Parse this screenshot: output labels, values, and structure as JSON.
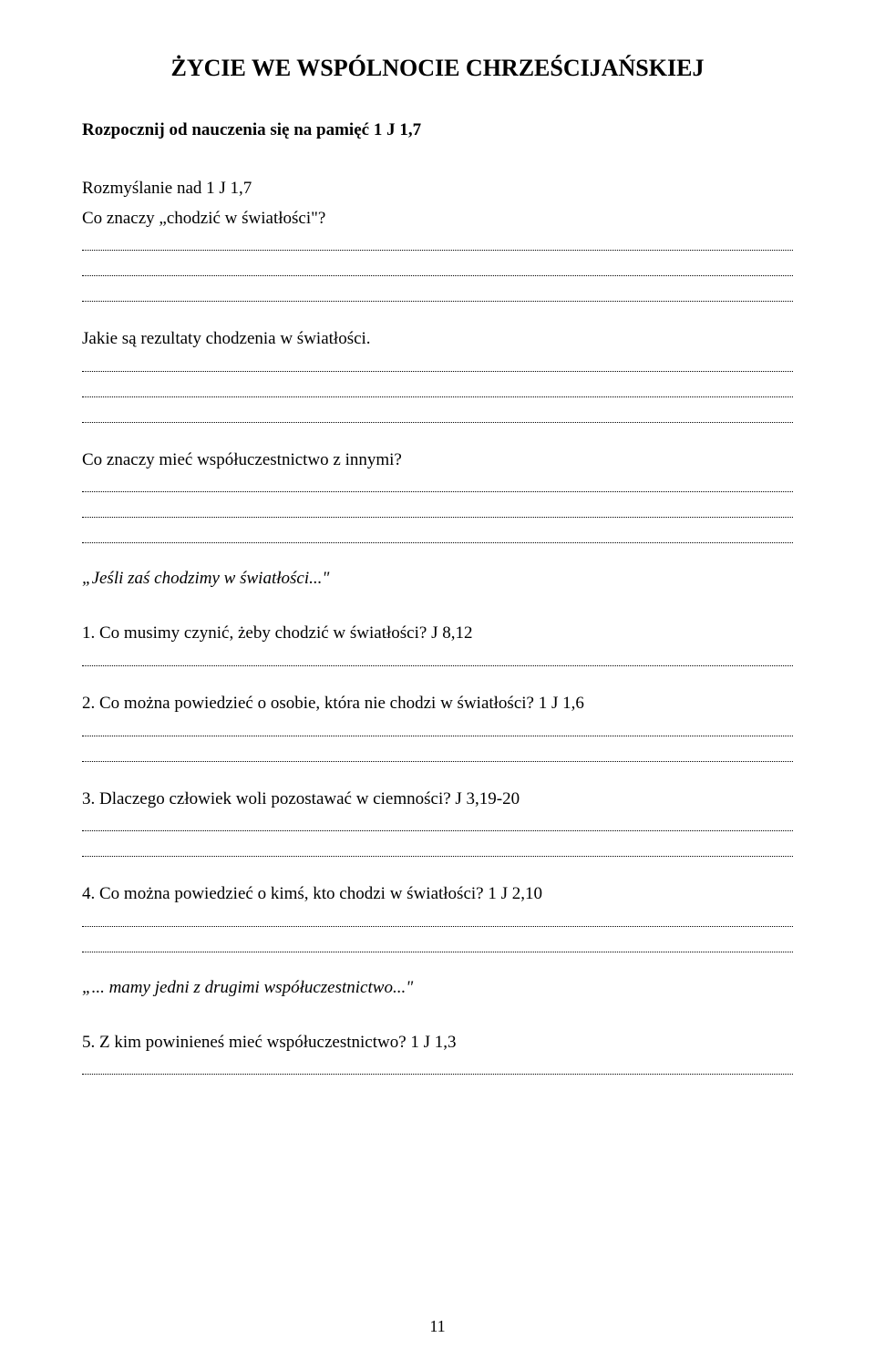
{
  "title": "ŻYCIE WE WSPÓLNOCIE CHRZEŚCIJAŃSKIEJ",
  "memorize": "Rozpocznij od nauczenia się na pamięć 1 J 1,7",
  "intro_heading": "Rozmyślanie nad 1 J 1,7",
  "intro_questions": {
    "q1": "Co znaczy „chodzić w światłości\"?",
    "q2": "Jakie są rezultaty chodzenia w światłości.",
    "q3": "Co znaczy mieć współuczestnictwo z innymi?"
  },
  "quote1": "„Jeśli zaś chodzimy w światłości...\"",
  "questions": {
    "n1": "1. Co musimy czynić, żeby chodzić w światłości? J 8,12",
    "n2": "2. Co można powiedzieć o osobie, która nie chodzi w światłości? 1 J 1,6",
    "n3": "3. Dlaczego człowiek woli pozostawać w ciemności? J 3,19-20",
    "n4": "4. Co można powiedzieć o kimś, kto chodzi w światłości? 1 J 2,10"
  },
  "quote2": "„... mamy jedni z drugimi współuczestnictwo...\"",
  "questions2": {
    "n5": "5. Z kim powinieneś mieć współuczestnictwo? 1 J 1,3"
  },
  "page_number": "11"
}
